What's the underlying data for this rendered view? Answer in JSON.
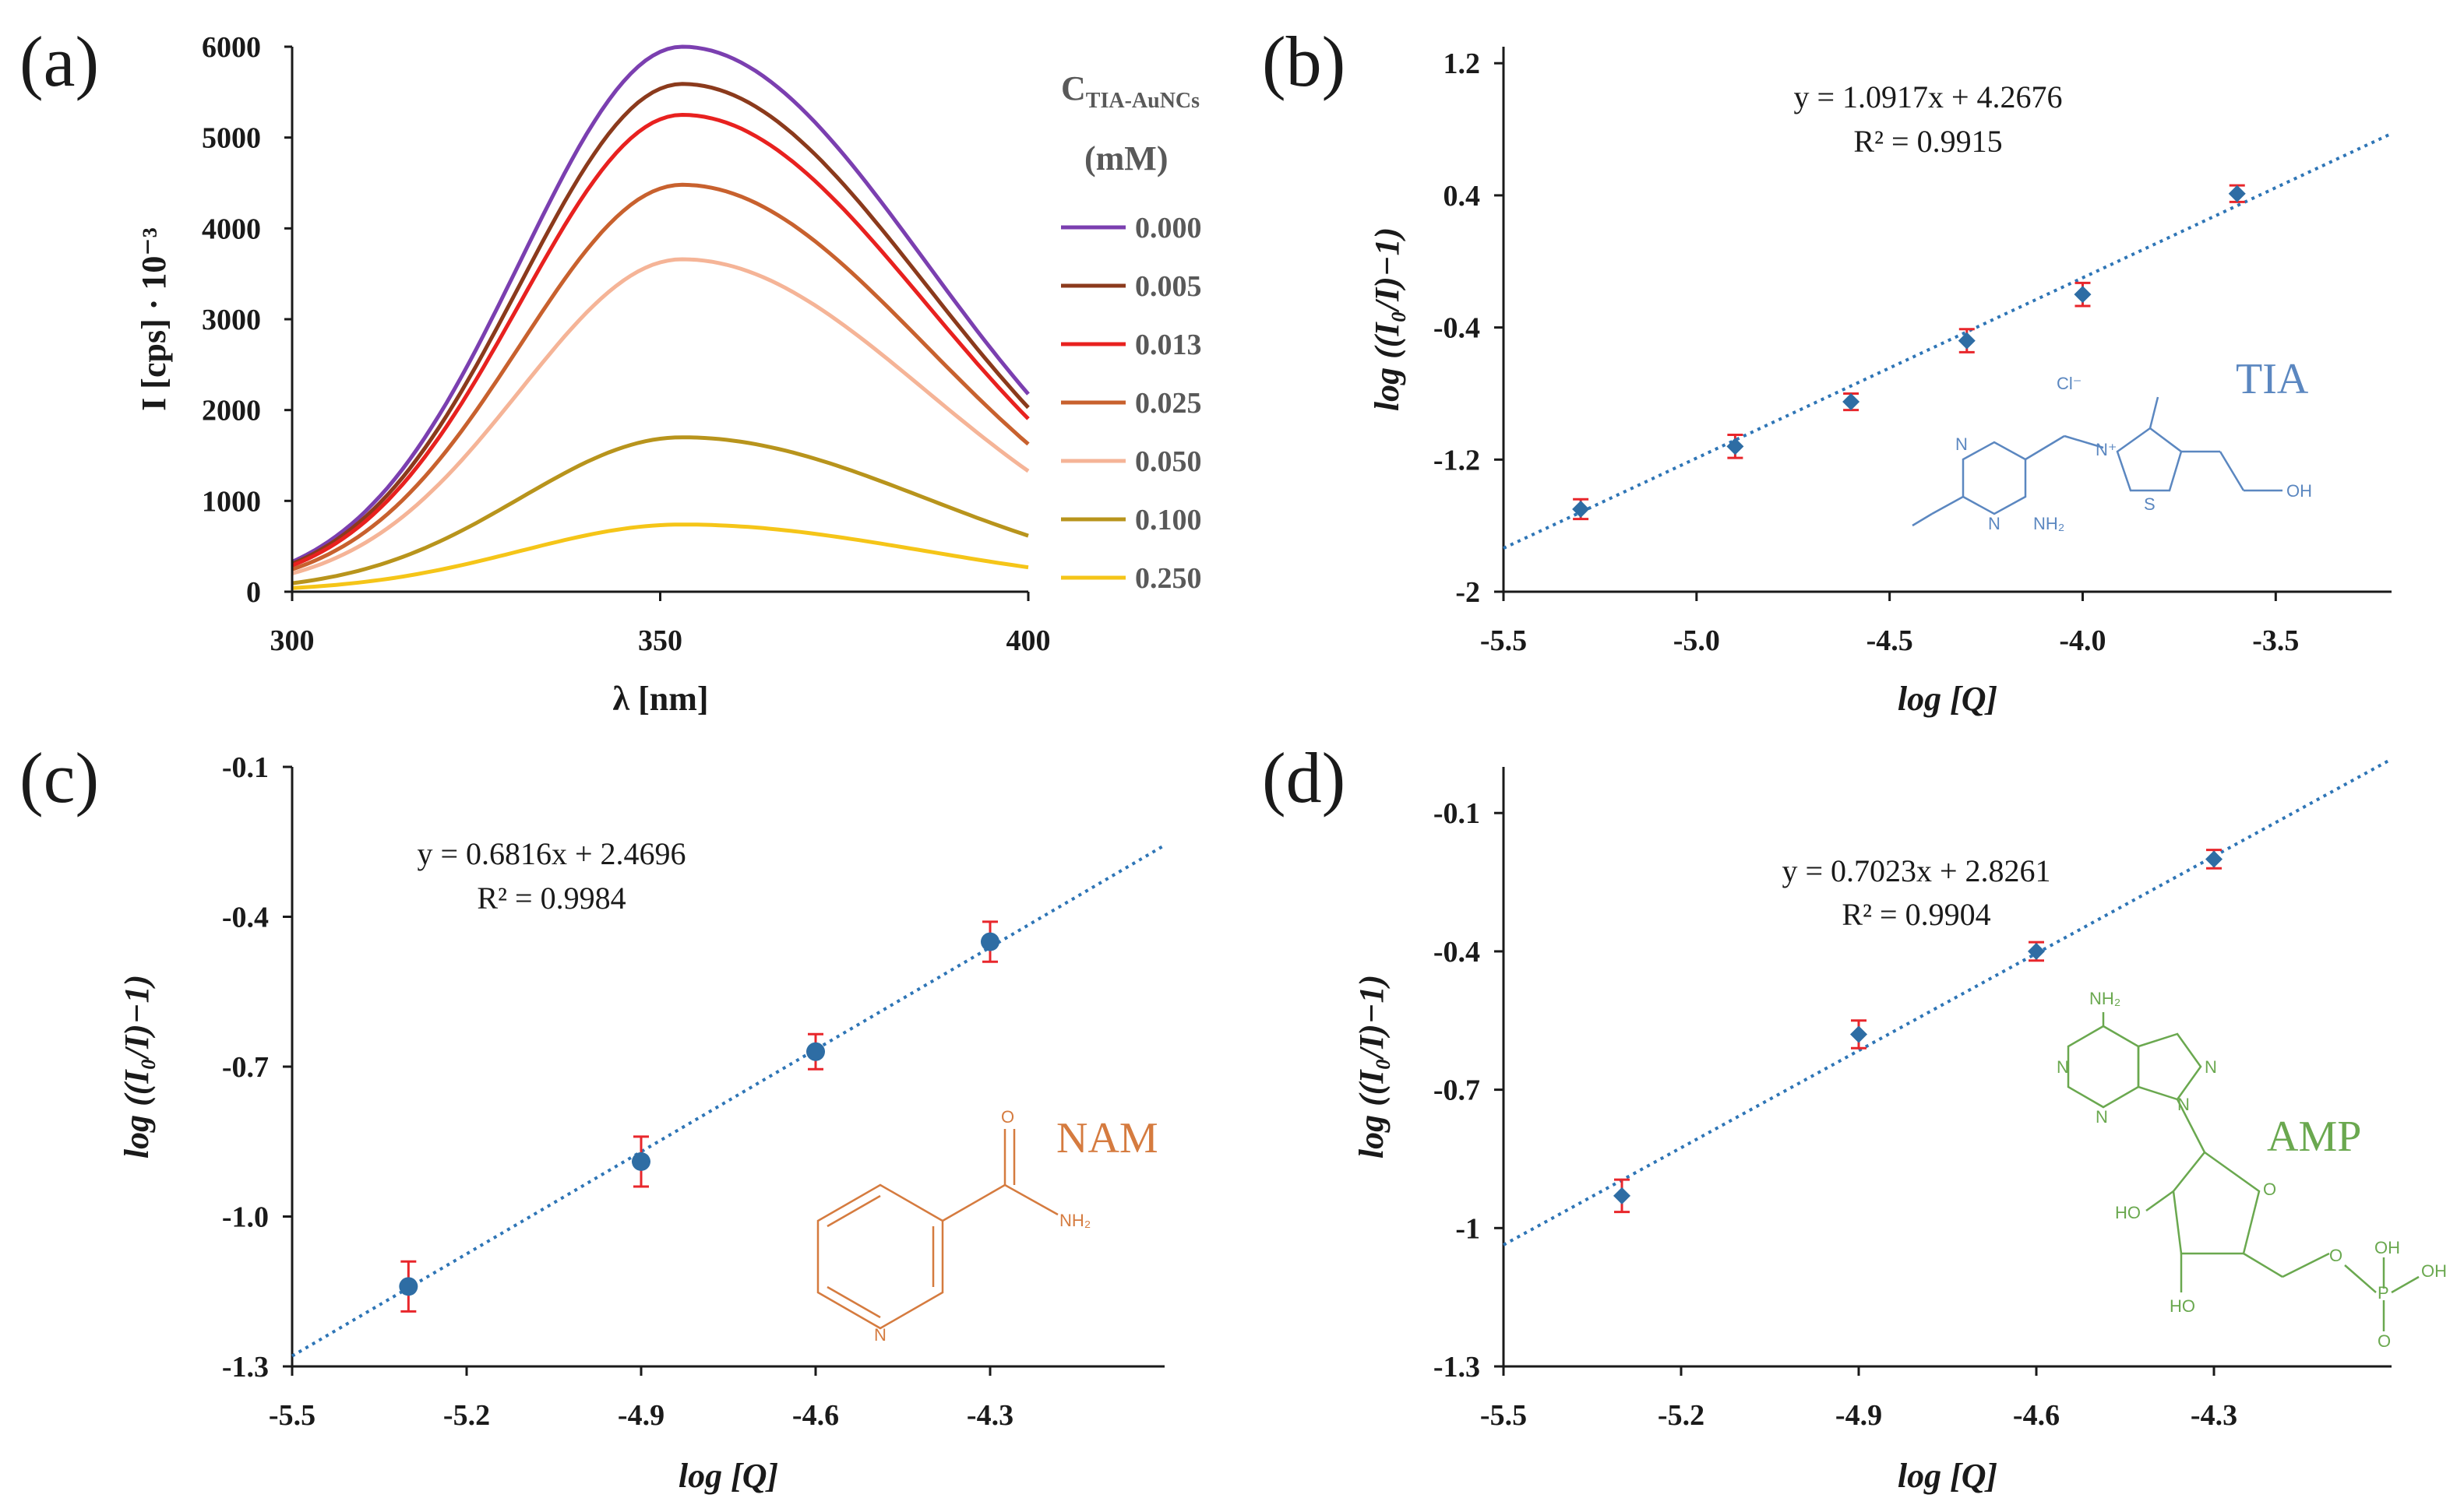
{
  "colors": {
    "axis": "#1a1a1a",
    "marker": "#2e6da4",
    "errorbar": "#e8262b",
    "fitline": "#2e75b6",
    "tia": "#5b87c0",
    "nam": "#d57b3f",
    "amp": "#6aa84f"
  },
  "chart_data": [
    {
      "id": "a",
      "panel": "(a)",
      "type": "line",
      "xlabel": "λ [nm]",
      "ylabel": "I [cps] · 10⁻³",
      "xlim": [
        300,
        400
      ],
      "ylim": [
        0,
        6000
      ],
      "xticks": [
        "300",
        "350",
        "400"
      ],
      "yticks": [
        "0",
        "1000",
        "2000",
        "3000",
        "4000",
        "5000",
        "6000"
      ],
      "legend_title": [
        "C",
        "TIA-AuNCs",
        "(mM)"
      ],
      "peak_nm": 353,
      "series": [
        {
          "name": "0.000",
          "color": "#7b3fb0",
          "peak": 6000,
          "x": [
            300,
            320,
            340,
            353,
            370,
            390,
            400
          ],
          "y": [
            180,
            2350,
            5140,
            6000,
            5300,
            3050,
            2230
          ]
        },
        {
          "name": "0.005",
          "color": "#8b3a1c",
          "peak": 5590,
          "x": [
            300,
            320,
            340,
            353,
            370,
            390,
            400
          ],
          "y": [
            170,
            2190,
            4790,
            5590,
            4950,
            2840,
            2080
          ]
        },
        {
          "name": "0.013",
          "color": "#e8211f",
          "peak": 5250,
          "x": [
            300,
            320,
            340,
            353,
            370,
            390,
            400
          ],
          "y": [
            160,
            2050,
            4500,
            5250,
            4640,
            2670,
            1950
          ]
        },
        {
          "name": "0.025",
          "color": "#c8612e",
          "peak": 4480,
          "x": [
            300,
            320,
            340,
            353,
            370,
            390,
            400
          ],
          "y": [
            140,
            1750,
            3840,
            4480,
            3960,
            2280,
            1660
          ]
        },
        {
          "name": "0.050",
          "color": "#f5b497",
          "peak": 3660,
          "x": [
            300,
            320,
            340,
            353,
            370,
            390,
            400
          ],
          "y": [
            110,
            1430,
            3140,
            3660,
            3240,
            1860,
            1310
          ]
        },
        {
          "name": "0.100",
          "color": "#b8941c",
          "peak": 1700,
          "x": [
            300,
            320,
            340,
            353,
            370,
            390,
            400
          ],
          "y": [
            30,
            660,
            1460,
            1700,
            1500,
            870,
            590
          ]
        },
        {
          "name": "0.250",
          "color": "#f5c518",
          "peak": 740,
          "x": [
            300,
            320,
            340,
            353,
            370,
            390,
            400
          ],
          "y": [
            20,
            290,
            640,
            740,
            650,
            380,
            270
          ]
        }
      ]
    },
    {
      "id": "b",
      "panel": "(b)",
      "type": "scatter",
      "xlabel": "log [Q]",
      "ylabel": "log ((I₀/I)−1)",
      "xlim": [
        -5.5,
        -3.2
      ],
      "ylim": [
        -2.0,
        1.3
      ],
      "xticks": [
        -5.5,
        -5.0,
        -4.5,
        -4.0,
        -3.5
      ],
      "xtick_labels": [
        "-5.5",
        "-5.0",
        "-4.5",
        "-4.0",
        "-3.5"
      ],
      "yticks": [
        -2.0,
        -1.2,
        -0.4,
        0.4,
        1.2
      ],
      "ytick_labels": [
        "-2",
        "-1.2",
        "-0.4",
        "0.4",
        "1.2"
      ],
      "x": [
        -5.3,
        -4.9,
        -4.6,
        -4.3,
        -4.0,
        -3.6
      ],
      "y": [
        -1.5,
        -1.12,
        -0.85,
        -0.48,
        -0.2,
        0.41
      ],
      "err": [
        0.06,
        0.07,
        0.05,
        0.07,
        0.07,
        0.05
      ],
      "fit": {
        "slope": 1.0917,
        "intercept": 4.2676,
        "equation": "y = 1.0917x + 4.2676",
        "r2": "R² = 0.9915"
      },
      "compound": "TIA",
      "atoms": {
        "cl": "Cl⁻",
        "n_plus": "N⁺",
        "n": "N",
        "s": "S",
        "oh": "OH",
        "nh2": "NH₂"
      }
    },
    {
      "id": "c",
      "panel": "(c)",
      "type": "scatter",
      "xlabel": "log [Q]",
      "ylabel": "log ((I₀/I)−1)",
      "xlim": [
        -5.5,
        -4.0
      ],
      "ylim": [
        -1.3,
        -0.1
      ],
      "xticks": [
        -5.5,
        -5.2,
        -4.9,
        -4.6,
        -4.3
      ],
      "xtick_labels": [
        "-5.5",
        "-5.2",
        "-4.9",
        "-4.6",
        "-4.3"
      ],
      "yticks": [
        -1.3,
        -1.0,
        -0.7,
        -0.4,
        -0.1
      ],
      "ytick_labels": [
        "-1.3",
        "-1.0",
        "-0.7",
        "-0.4",
        "-0.1"
      ],
      "x": [
        -5.3,
        -4.9,
        -4.6,
        -4.3
      ],
      "y": [
        -1.14,
        -0.89,
        -0.67,
        -0.45
      ],
      "err": [
        0.05,
        0.05,
        0.035,
        0.04
      ],
      "fit": {
        "slope": 0.6816,
        "intercept": 2.4696,
        "equation": "y = 0.6816x + 2.4696",
        "r2": "R² = 0.9984"
      },
      "compound": "NAM",
      "atoms": {
        "o": "O",
        "nh2": "NH₂",
        "n": "N"
      }
    },
    {
      "id": "d",
      "panel": "(d)",
      "type": "scatter",
      "xlabel": "log [Q]",
      "ylabel": "log ((I₀/I)−1)",
      "xlim": [
        -5.5,
        -4.0
      ],
      "ylim": [
        -1.3,
        0.0
      ],
      "xticks": [
        -5.5,
        -5.2,
        -4.9,
        -4.6,
        -4.3
      ],
      "xtick_labels": [
        "-5.5",
        "-5.2",
        "-4.9",
        "-4.6",
        "-4.3"
      ],
      "yticks": [
        -1.3,
        -1.0,
        -0.7,
        -0.4,
        -0.1
      ],
      "ytick_labels": [
        "-1.3",
        "-1",
        "-0.7",
        "-0.4",
        "-0.1"
      ],
      "x": [
        -5.3,
        -4.9,
        -4.6,
        -4.3
      ],
      "y": [
        -0.93,
        -0.58,
        -0.4,
        -0.2
      ],
      "err": [
        0.035,
        0.03,
        0.02,
        0.02
      ],
      "fit": {
        "slope": 0.7023,
        "intercept": 2.8261,
        "equation": "y = 0.7023x + 2.8261",
        "r2": "R² = 0.9904"
      },
      "compound": "AMP",
      "atoms": {
        "nh2": "NH₂",
        "n": "N",
        "o": "O",
        "ho": "HO",
        "p": "P",
        "oh": "OH"
      }
    }
  ]
}
